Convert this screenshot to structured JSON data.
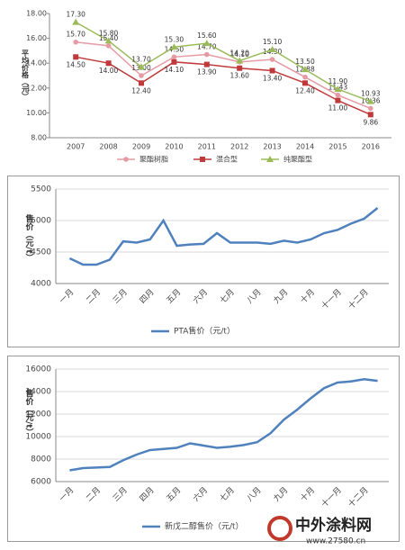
{
  "chart_data": [
    {
      "type": "line",
      "y_label": "平均价格（元）",
      "categories": [
        "2007",
        "2008",
        "2009",
        "2010",
        "2011",
        "2012",
        "2013",
        "2014",
        "2015",
        "2016"
      ],
      "ylim": [
        8,
        18
      ],
      "yticks": [
        {
          "value": 8,
          "label": "8.00"
        },
        {
          "value": 10,
          "label": "10.00"
        },
        {
          "value": 12,
          "label": "12.00"
        },
        {
          "value": 14,
          "label": "14.00"
        },
        {
          "value": 16,
          "label": "16.00"
        },
        {
          "value": 18,
          "label": "18.00"
        }
      ],
      "grid": false,
      "series": [
        {
          "name": "聚酯树脂",
          "color": "#e59aa4",
          "marker": "circle",
          "values": [
            15.7,
            15.4,
            13.0,
            14.5,
            14.7,
            14.1,
            14.3,
            12.88,
            11.43,
            10.36
          ],
          "value_labels": [
            "15.70",
            "15.40",
            "13.00",
            "14.50",
            "14.70",
            "14.10",
            "14.30",
            "12.88",
            "11.43",
            "10.36"
          ]
        },
        {
          "name": "混合型",
          "color": "#c0393b",
          "marker": "square",
          "values": [
            14.5,
            14.0,
            12.4,
            14.1,
            13.9,
            13.6,
            13.4,
            12.4,
            11.0,
            9.86
          ],
          "value_labels": [
            "14.50",
            "14.00",
            "12.40",
            "14.10",
            "13.90",
            "13.60",
            "13.40",
            "12.40",
            "11.00",
            "9.86"
          ]
        },
        {
          "name": "纯聚酯型",
          "color": "#9bbb59",
          "marker": "triangle",
          "values": [
            17.3,
            15.8,
            13.7,
            15.3,
            15.6,
            14.2,
            15.1,
            13.5,
            11.9,
            10.93
          ],
          "value_labels": [
            "17.30",
            "15.80",
            "13.70",
            "15.30",
            "15.60",
            "14.20",
            "15.10",
            "13.50",
            "11.90",
            "10.93"
          ]
        }
      ]
    },
    {
      "type": "line",
      "y_label": "售价（元/t）",
      "categories": [
        "一月",
        null,
        "二月",
        null,
        "三月",
        null,
        "四月",
        null,
        "五月",
        null,
        "六月",
        null,
        "七月",
        null,
        "八月",
        null,
        "九月",
        null,
        "十月",
        null,
        "十一月",
        null,
        "十二月",
        null
      ],
      "ylim": [
        4000,
        5500
      ],
      "yticks": [
        4000,
        4500,
        5000,
        5500
      ],
      "grid": true,
      "series": [
        {
          "name": "PTA售价（元/t）",
          "color": "#4f81bd",
          "values": [
            4400,
            4300,
            4300,
            4380,
            4670,
            4650,
            4700,
            5000,
            4600,
            4620,
            4630,
            4800,
            4650,
            4650,
            4650,
            4630,
            4680,
            4650,
            4700,
            4800,
            4850,
            4950,
            5030,
            5200
          ]
        }
      ]
    },
    {
      "type": "line",
      "y_label": "售价（元/t）",
      "categories": [
        "一月",
        null,
        "二月",
        null,
        "三月",
        null,
        "四月",
        null,
        "五月",
        null,
        "六月",
        null,
        "七月",
        null,
        "八月",
        null,
        "九月",
        null,
        "十月",
        null,
        "十一月",
        null,
        "十二月",
        null
      ],
      "ylim": [
        6000,
        16000
      ],
      "yticks": [
        6000,
        8000,
        10000,
        12000,
        14000,
        16000
      ],
      "grid": true,
      "series": [
        {
          "name": "新戊二醇售价（元/t）",
          "color": "#4f81bd",
          "values": [
            7000,
            7200,
            7250,
            7300,
            7900,
            8400,
            8800,
            8900,
            9000,
            9400,
            9200,
            9000,
            9100,
            9250,
            9500,
            10300,
            11500,
            12400,
            13400,
            14300,
            14800,
            14900,
            15100,
            14950
          ]
        }
      ]
    }
  ],
  "watermark": {
    "name": "中外涂料网",
    "url": "www.27580.cn"
  }
}
